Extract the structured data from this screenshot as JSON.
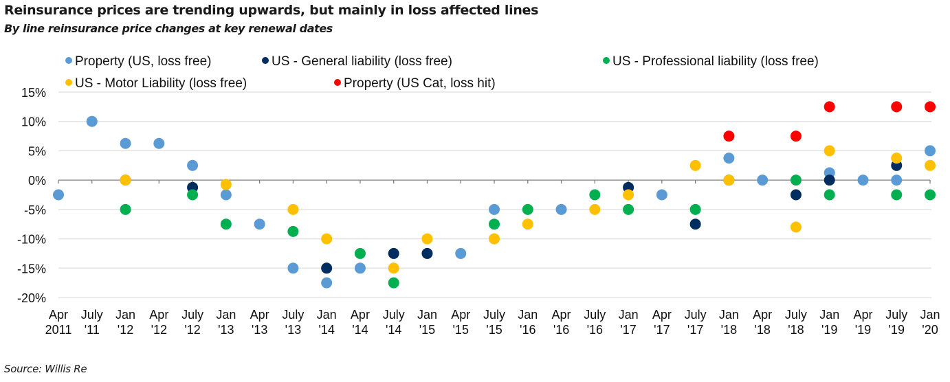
{
  "chart_data": {
    "type": "scatter",
    "title": "Reinsurance prices are trending upwards, but mainly in loss affected lines",
    "subtitle": "By line reinsurance price changes at key renewal dates",
    "source": "Source: Willis Re",
    "xlabel": "",
    "ylabel": "",
    "ylim": [
      -20,
      15
    ],
    "yticks": [
      15,
      10,
      5,
      0,
      -5,
      -10,
      -15,
      -20
    ],
    "ytick_labels": [
      "15%",
      "10%",
      "5%",
      "0%",
      "-5%",
      "-10%",
      "-15%",
      "-20%"
    ],
    "grid": true,
    "legend_position": "top",
    "categories": [
      [
        "Apr",
        "2011"
      ],
      [
        "July",
        "'11"
      ],
      [
        "Jan",
        "'12"
      ],
      [
        "Apr",
        "'12"
      ],
      [
        "July",
        "'12"
      ],
      [
        "Jan",
        "'13"
      ],
      [
        "Apr",
        "'13"
      ],
      [
        "July",
        "'13"
      ],
      [
        "Jan",
        "'14"
      ],
      [
        "Apr",
        "'14"
      ],
      [
        "July",
        "'14"
      ],
      [
        "Jan",
        "'15"
      ],
      [
        "Apr",
        "'15"
      ],
      [
        "July",
        "'15"
      ],
      [
        "Jan",
        "'16"
      ],
      [
        "Apr",
        "'16"
      ],
      [
        "July",
        "'16"
      ],
      [
        "Jan",
        "'17"
      ],
      [
        "Apr",
        "'17"
      ],
      [
        "July",
        "'17"
      ],
      [
        "Jan",
        "'18"
      ],
      [
        "Apr",
        "'18"
      ],
      [
        "July",
        "'18"
      ],
      [
        "Jan",
        "'19"
      ],
      [
        "Apr",
        "'19"
      ],
      [
        "July",
        "'19"
      ],
      [
        "Jan",
        "'20"
      ]
    ],
    "series": [
      {
        "name": "Property (US, loss free)",
        "color": "#5B9BD5",
        "values": [
          -2.5,
          10,
          6.25,
          6.25,
          2.5,
          -2.5,
          -7.5,
          -15,
          -17.5,
          -15,
          null,
          null,
          -12.5,
          -5,
          null,
          -5,
          null,
          null,
          -2.5,
          null,
          3.75,
          0,
          null,
          1.25,
          0,
          0,
          5
        ]
      },
      {
        "name": "US - General liability (loss free)",
        "color": "#002D5F",
        "values": [
          null,
          null,
          0,
          null,
          -1.25,
          null,
          null,
          null,
          -15,
          null,
          -12.5,
          -12.5,
          null,
          null,
          null,
          null,
          null,
          -1.25,
          null,
          -7.5,
          0,
          null,
          -2.5,
          0,
          null,
          2.5,
          null
        ]
      },
      {
        "name": "US - Professional liability (loss free)",
        "color": "#00B050",
        "values": [
          null,
          null,
          -5,
          null,
          -2.5,
          -7.5,
          null,
          -8.75,
          null,
          -12.5,
          -17.5,
          null,
          null,
          -7.5,
          -5,
          null,
          -2.5,
          -5,
          null,
          -5,
          0,
          null,
          0,
          -2.5,
          null,
          -2.5,
          -2.5
        ]
      },
      {
        "name": "US - Motor Liability (loss free)",
        "color": "#FFC000",
        "values": [
          null,
          null,
          0,
          null,
          null,
          -0.75,
          null,
          -5,
          -10,
          null,
          -15,
          -10,
          null,
          -10,
          -7.5,
          null,
          -5,
          -2.5,
          null,
          2.5,
          0,
          null,
          -8,
          5,
          null,
          3.75,
          2.5
        ]
      },
      {
        "name": "Property (US Cat, loss hit)",
        "color": "#FF0000",
        "values": [
          null,
          null,
          null,
          null,
          null,
          null,
          null,
          null,
          null,
          null,
          null,
          null,
          null,
          null,
          null,
          null,
          null,
          null,
          null,
          null,
          7.5,
          null,
          7.5,
          12.5,
          null,
          12.5,
          12.5
        ]
      }
    ],
    "legend": [
      {
        "label": "Property (US, loss free)",
        "color": "#5B9BD5"
      },
      {
        "label": "US - General liability (loss free)",
        "color": "#002D5F"
      },
      {
        "label": "US - Professional liability (loss free)",
        "color": "#00B050"
      },
      {
        "label": "US - Motor Liability (loss free)",
        "color": "#FFC000"
      },
      {
        "label": "Property (US Cat, loss hit)",
        "color": "#FF0000"
      }
    ]
  }
}
